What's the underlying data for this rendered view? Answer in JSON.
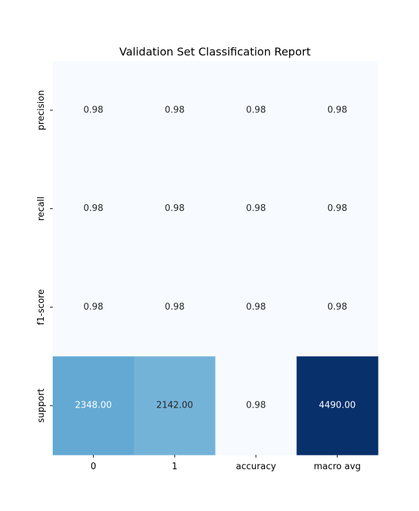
{
  "chart_data": {
    "type": "heatmap",
    "title": "Validation Set Classification Report",
    "xlabel": "",
    "ylabel": "",
    "columns": [
      "0",
      "1",
      "accuracy",
      "macro avg"
    ],
    "rows": [
      "precision",
      "recall",
      "f1-score",
      "support"
    ],
    "values": [
      [
        0.98,
        0.98,
        0.98,
        0.98
      ],
      [
        0.98,
        0.98,
        0.98,
        0.98
      ],
      [
        0.98,
        0.98,
        0.98,
        0.98
      ],
      [
        2348.0,
        2142.0,
        0.98,
        4490.0
      ]
    ],
    "cell_labels": [
      [
        "0.98",
        "0.98",
        "0.98",
        "0.98"
      ],
      [
        "0.98",
        "0.98",
        "0.98",
        "0.98"
      ],
      [
        "0.98",
        "0.98",
        "0.98",
        "0.98"
      ],
      [
        "2348.00",
        "2142.00",
        "0.98",
        "4490.00"
      ]
    ],
    "colormap": "Blues",
    "color_range": [
      0,
      4490
    ],
    "colorbar": false,
    "grid": false
  }
}
